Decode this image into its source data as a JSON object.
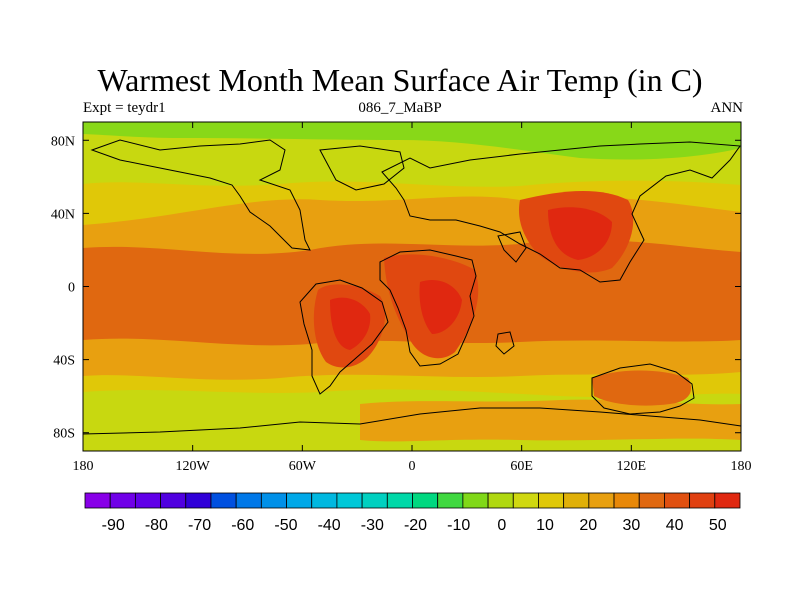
{
  "title": "Warmest Month Mean Surface Air Temp (in C)",
  "subtitle_left": "Expt = teydr1",
  "subtitle_center": "086_7_MaBP",
  "subtitle_right": "ANN",
  "map": {
    "lon_range": [
      -180,
      180
    ],
    "lat_range": [
      -90,
      90
    ],
    "x_ticks": [
      {
        "value": -180,
        "label": "180"
      },
      {
        "value": -120,
        "label": "120W"
      },
      {
        "value": -60,
        "label": "60W"
      },
      {
        "value": 0,
        "label": "0"
      },
      {
        "value": 60,
        "label": "60E"
      },
      {
        "value": 120,
        "label": "120E"
      },
      {
        "value": 180,
        "label": "180"
      }
    ],
    "y_ticks": [
      {
        "value": 80,
        "label": "80N"
      },
      {
        "value": 40,
        "label": "40N"
      },
      {
        "value": 0,
        "label": "0"
      },
      {
        "value": -40,
        "label": "40S"
      },
      {
        "value": -80,
        "label": "80S"
      }
    ],
    "colors": {
      "polar": "#88d818",
      "cool": "#c8d810",
      "mild": "#e0c808",
      "warm": "#e8a010",
      "hot": "#e06810",
      "hotter": "#e04810",
      "hottest": "#e02810",
      "coast": "#000000"
    }
  },
  "colorbar": {
    "colors": [
      "#8800e8",
      "#7000e8",
      "#6000e8",
      "#5000e0",
      "#3000d8",
      "#0050e0",
      "#0078e8",
      "#0090e8",
      "#00a8e8",
      "#00b8e0",
      "#00c8d8",
      "#00d0c0",
      "#00d8a8",
      "#00d880",
      "#40d840",
      "#80d818",
      "#b0d810",
      "#d0d810",
      "#e0c808",
      "#e0b008",
      "#e8a010",
      "#e88808",
      "#e06810",
      "#e05010",
      "#e04010",
      "#e02810"
    ],
    "labels": [
      "-90",
      "-80",
      "-70",
      "-60",
      "-50",
      "-40",
      "-30",
      "-20",
      "-10",
      "0",
      "10",
      "20",
      "30",
      "40",
      "50"
    ]
  }
}
